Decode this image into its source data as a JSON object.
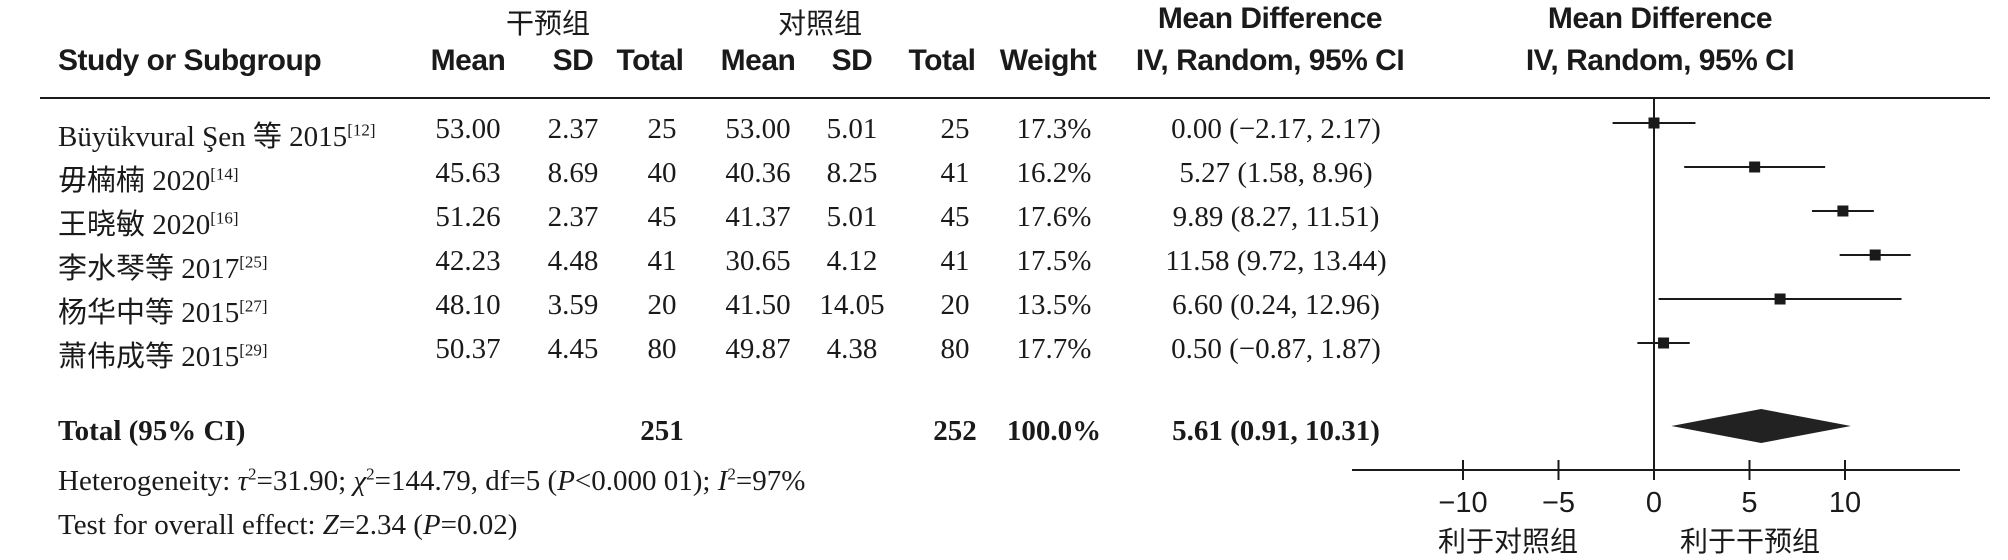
{
  "header": {
    "study_or_subgroup": "Study or Subgroup",
    "group1": "干预组",
    "group2": "对照组",
    "mean": "Mean",
    "sd": "SD",
    "total": "Total",
    "weight": "Weight",
    "md_title": "Mean Difference",
    "md_method": "IV, Random, 95% CI"
  },
  "studies": [
    {
      "name": "Büyükvural Şen 等 2015",
      "ref": "[12]",
      "m1": "53.00",
      "sd1": "2.37",
      "n1": "25",
      "m2": "53.00",
      "sd2": "5.01",
      "n2": "25",
      "weight": "17.3%",
      "ci": "0.00 (−2.17, 2.17)"
    },
    {
      "name": "毋楠楠 2020",
      "ref": "[14]",
      "m1": "45.63",
      "sd1": "8.69",
      "n1": "40",
      "m2": "40.36",
      "sd2": "8.25",
      "n2": "41",
      "weight": "16.2%",
      "ci": "5.27 (1.58, 8.96)"
    },
    {
      "name": "王晓敏 2020",
      "ref": "[16]",
      "m1": "51.26",
      "sd1": "2.37",
      "n1": "45",
      "m2": "41.37",
      "sd2": "5.01",
      "n2": "45",
      "weight": "17.6%",
      "ci": "9.89 (8.27, 11.51)"
    },
    {
      "name": "李水琴等 2017",
      "ref": "[25]",
      "m1": "42.23",
      "sd1": "4.48",
      "n1": "41",
      "m2": "30.65",
      "sd2": "4.12",
      "n2": "41",
      "weight": "17.5%",
      "ci": "11.58 (9.72, 13.44)"
    },
    {
      "name": "杨华中等 2015",
      "ref": "[27]",
      "m1": "48.10",
      "sd1": "3.59",
      "n1": "20",
      "m2": "41.50",
      "sd2": "14.05",
      "n2": "20",
      "weight": "13.5%",
      "ci": "6.60 (0.24, 12.96)"
    },
    {
      "name": "萧伟成等 2015",
      "ref": "[29]",
      "m1": "50.37",
      "sd1": "4.45",
      "n1": "80",
      "m2": "49.87",
      "sd2": "4.38",
      "n2": "80",
      "weight": "17.7%",
      "ci": "0.50 (−0.87, 1.87)"
    }
  ],
  "total": {
    "label": "Total (95% CI)",
    "n1": "251",
    "n2": "252",
    "weight": "100.0%",
    "ci": "5.61 (0.91, 10.31)"
  },
  "footer": {
    "heterogeneity_prefix": "Heterogeneity: ",
    "tau": "τ",
    "tau_val": "=31.90; ",
    "chi": "χ",
    "chi_val": "=144.79, df=5 (",
    "p1": "P",
    "p1_val": "<0.000 01); ",
    "i": "I",
    "i_val": "=97%",
    "sq": "2",
    "overall_prefix": "Test for overall effect: ",
    "z": "Z",
    "z_val": "=2.34 (",
    "p2": "P",
    "p2_val": "=0.02)"
  },
  "axis_labels": {
    "left": "利于对照组",
    "right": "利于干预组"
  },
  "chart_data": {
    "type": "forest",
    "xlim": [
      -15,
      15
    ],
    "ticks": [
      -10,
      -5,
      0,
      5,
      10
    ],
    "tick_labels": [
      "−10",
      "−5",
      "0",
      "5",
      "10"
    ],
    "effects": [
      {
        "mean": 0.0,
        "lo": -2.17,
        "hi": 2.17,
        "weight": 17.3
      },
      {
        "mean": 5.27,
        "lo": 1.58,
        "hi": 8.96,
        "weight": 16.2
      },
      {
        "mean": 9.89,
        "lo": 8.27,
        "hi": 11.51,
        "weight": 17.6
      },
      {
        "mean": 11.58,
        "lo": 9.72,
        "hi": 13.44,
        "weight": 17.5
      },
      {
        "mean": 6.6,
        "lo": 0.24,
        "hi": 12.96,
        "weight": 13.5
      },
      {
        "mean": 0.5,
        "lo": -0.87,
        "hi": 1.87,
        "weight": 17.7
      }
    ],
    "pooled": {
      "mean": 5.61,
      "lo": 0.91,
      "hi": 10.31
    },
    "colors": {
      "ink": "#1a1a1a",
      "diamond": "#222222"
    }
  }
}
